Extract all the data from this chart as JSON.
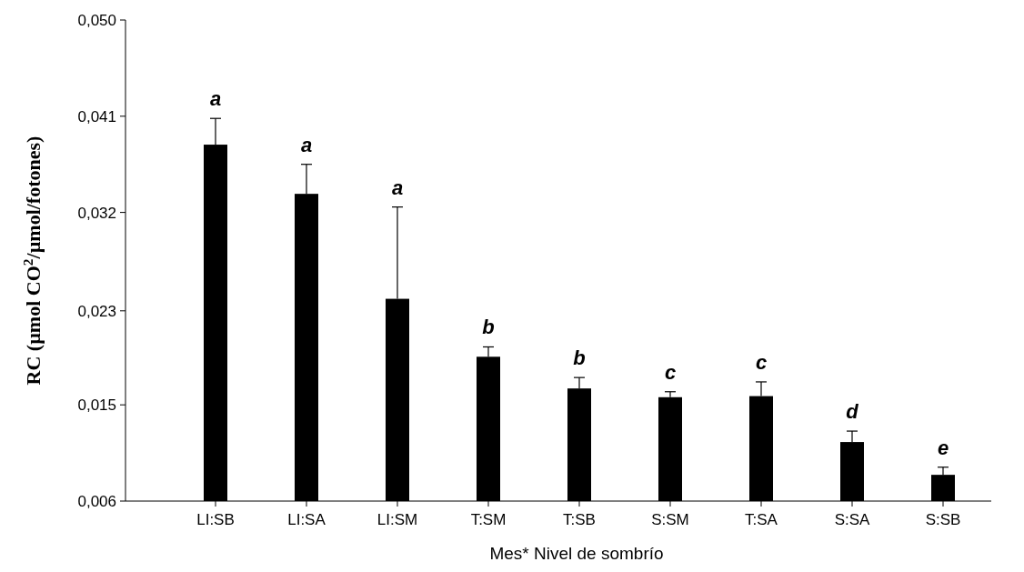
{
  "chart_data": {
    "type": "bar",
    "xlabel": "Mes* Nivel de sombrío",
    "ylabel": "RC (µmol CO$^{2}$/µmol/fotones)",
    "categories": [
      "LI:SB",
      "LI:SA",
      "LI:SM",
      "T:SM",
      "T:SB",
      "S:SM",
      "T:SA",
      "S:SA",
      "S:SB"
    ],
    "values": [
      0.0386,
      0.0341,
      0.0245,
      0.0192,
      0.0163,
      0.0155,
      0.0156,
      0.0114,
      0.0084
    ],
    "errors": [
      [
        0.0386,
        0.041
      ],
      [
        0.0341,
        0.0368
      ],
      [
        0.0245,
        0.0329
      ],
      [
        0.0192,
        0.0201
      ],
      [
        0.0163,
        0.0173
      ],
      [
        0.0155,
        0.016
      ],
      [
        0.0156,
        0.0169
      ],
      [
        0.0114,
        0.0124
      ],
      [
        0.0084,
        0.0091
      ]
    ],
    "color": "#000000",
    "ylim": [
      0.006,
      0.05
    ],
    "yticks": [
      {
        "value": 0.006,
        "label": "0,006"
      },
      {
        "value": 0.0148,
        "label": "0,015"
      },
      {
        "value": 0.0234,
        "label": "0,023"
      },
      {
        "value": 0.0324,
        "label": "0,032"
      },
      {
        "value": 0.0412,
        "label": "0,041"
      },
      {
        "value": 0.05,
        "label": "0,050"
      }
    ],
    "annotations": [
      {
        "text": "a",
        "x": "LI:SB",
        "y": 0.041
      },
      {
        "text": "a",
        "x": "LI:SA",
        "y": 0.0368
      },
      {
        "text": "a",
        "x": "LI:SM",
        "y": 0.0329
      },
      {
        "text": "b",
        "x": "T:SM",
        "y": 0.0201
      },
      {
        "text": "b",
        "x": "T:SB",
        "y": 0.0173
      },
      {
        "text": "c",
        "x": "S:SM",
        "y": 0.016
      },
      {
        "text": "c",
        "x": "T:SA",
        "y": 0.0169
      },
      {
        "text": "d",
        "x": "S:SA",
        "y": 0.0124
      },
      {
        "text": "e",
        "x": "S:SB",
        "y": 0.0091
      }
    ],
    "grid": false
  }
}
